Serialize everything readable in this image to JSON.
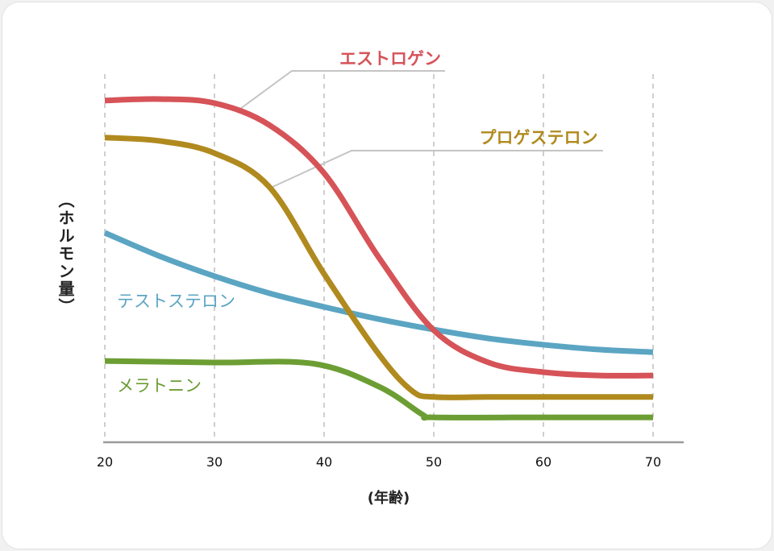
{
  "chart_data": {
    "type": "line",
    "xlabel": "(年齢)",
    "ylabel": "（ホルモン量）",
    "xlim": [
      20,
      70
    ],
    "xticks": [
      20,
      30,
      40,
      50,
      60,
      70
    ],
    "ylim": [
      0,
      100
    ],
    "grid": "vertical dashed",
    "legend": "inline labels",
    "series": [
      {
        "name": "エストロゲン",
        "color": "#d65358",
        "x": [
          20,
          25,
          30,
          35,
          40,
          45,
          50,
          55,
          60,
          65,
          70
        ],
        "y": [
          92,
          92.4,
          91.3,
          85.4,
          72.4,
          49.6,
          30,
          21.3,
          18.7,
          17.8,
          17.8
        ]
      },
      {
        "name": "プロゲステロン",
        "color": "#b08a1e",
        "x": [
          20,
          25,
          30,
          35,
          40,
          45,
          48,
          50,
          55,
          60,
          65,
          70
        ],
        "y": [
          82,
          81.1,
          77.8,
          68.7,
          45.2,
          23.5,
          13.7,
          12,
          12,
          12,
          12,
          12
        ]
      },
      {
        "name": "テストステロン",
        "color": "#5ba5c3",
        "x": [
          20,
          25,
          30,
          35,
          40,
          45,
          50,
          55,
          60,
          65,
          70
        ],
        "y": [
          56.3,
          50,
          44.6,
          40,
          36.3,
          33,
          30.2,
          27.8,
          26.1,
          24.8,
          24.1
        ]
      },
      {
        "name": "メラトニン",
        "color": "#6c9e34",
        "x": [
          20,
          30,
          39,
          45,
          49,
          50,
          60,
          70
        ],
        "y": [
          21.7,
          21.3,
          21,
          14.8,
          7.2,
          6.5,
          6.5,
          6.5
        ]
      }
    ]
  }
}
